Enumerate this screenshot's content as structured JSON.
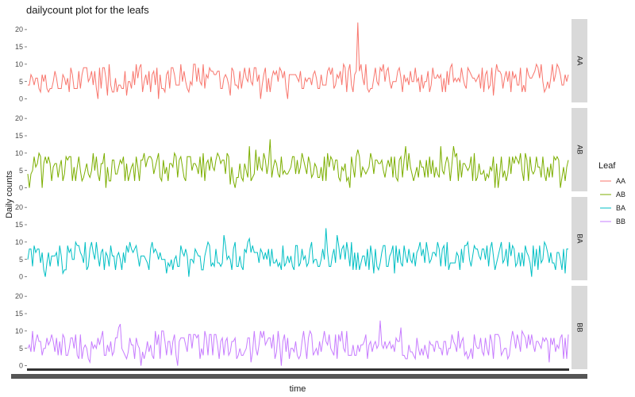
{
  "chart_data": {
    "type": "line",
    "title": "dailycount plot for the leafs",
    "xlabel": "time",
    "ylabel": "Daily counts",
    "ylim": [
      -1,
      23
    ],
    "yticks": [
      0,
      5,
      10,
      15,
      20
    ],
    "facet": "rows",
    "grid": false,
    "legend": {
      "title": "Leaf",
      "position": "right"
    },
    "series": [
      {
        "name": "AA",
        "color": "#F8766D",
        "typical_range": [
          2,
          10
        ],
        "peak": 22,
        "approx_points": 340
      },
      {
        "name": "AB",
        "color": "#7CAE00",
        "typical_range": [
          2,
          10
        ],
        "peak": 14,
        "approx_points": 340
      },
      {
        "name": "BA",
        "color": "#00BFC4",
        "typical_range": [
          2,
          10
        ],
        "peak": 14,
        "approx_points": 340
      },
      {
        "name": "BB",
        "color": "#C77CFF",
        "typical_range": [
          2,
          10
        ],
        "peak": 13,
        "approx_points": 340
      }
    ]
  }
}
